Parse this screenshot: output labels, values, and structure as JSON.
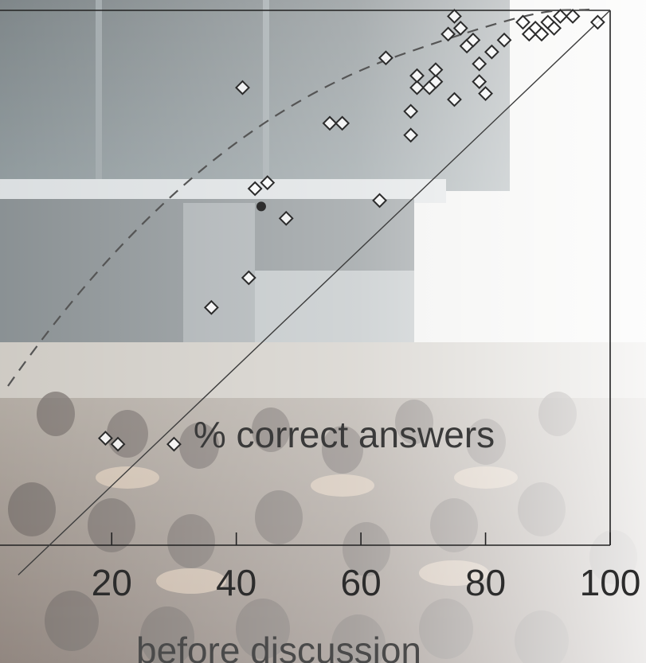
{
  "chart_data": {
    "type": "scatter",
    "title": "",
    "xlabel": "before discussion",
    "ylabel": "",
    "annotation": "% correct answers",
    "xlim": [
      10,
      100
    ],
    "ylim": [
      10,
      100
    ],
    "x_ticks": [
      "20",
      "40",
      "60",
      "80",
      "100"
    ],
    "grid": false,
    "series": [
      {
        "marker": "diamond",
        "x": [
          19,
          21,
          30,
          36,
          42,
          43,
          45,
          48,
          41,
          55,
          57,
          63,
          68,
          68,
          69,
          69,
          71,
          72,
          75,
          77,
          64,
          72,
          74,
          76,
          75,
          78,
          79,
          79,
          80,
          81,
          83,
          86,
          88,
          90,
          92,
          94,
          87,
          89,
          91,
          98
        ],
        "y": [
          28,
          27,
          27,
          50,
          55,
          70,
          71,
          65,
          87,
          81,
          81,
          68,
          79,
          83,
          87,
          89,
          87,
          88,
          85,
          94,
          92,
          90,
          96,
          97,
          99,
          95,
          88,
          91,
          86,
          93,
          95,
          98,
          97,
          98,
          99,
          99,
          96,
          96,
          97,
          98
        ]
      }
    ],
    "highlight_point": {
      "x": 44,
      "y": 67
    },
    "reference_lines": [
      "y = x",
      "dashed trend"
    ],
    "colors": {
      "marker_fill": "#ffffff",
      "marker_stroke": "#2b2b2b",
      "axis": "#222222",
      "trend": "#555555"
    }
  }
}
